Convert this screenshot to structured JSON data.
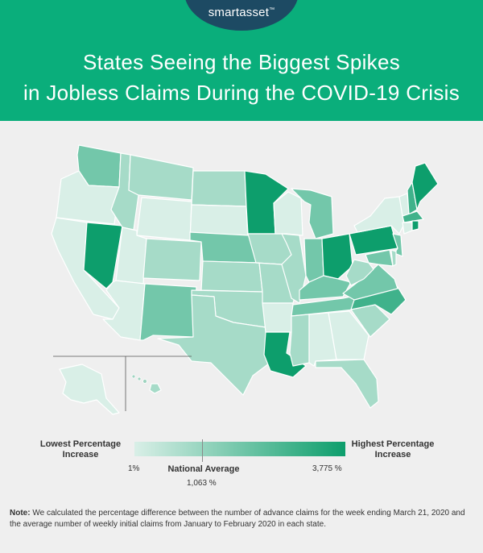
{
  "brand": {
    "logo_text": "smartasset",
    "trademark": "™"
  },
  "title": {
    "line1": "States Seeing the Biggest Spikes",
    "line2": "in Jobless Claims During the COVID-19 Crisis"
  },
  "colors": {
    "header_bg": "#0aae7b",
    "logo_badge": "#1d4a63",
    "lightest": "#d9efe7",
    "darkest": "#0d9e6c",
    "background": "#efefef"
  },
  "legend": {
    "low_label_line1": "Lowest Percentage",
    "low_label_line2": "Increase",
    "high_label_line1": "Highest Percentage",
    "high_label_line2": "Increase",
    "min_value": "1%",
    "max_value": "3,775 %",
    "national_average_label": "National Average",
    "national_average_value": "1,063 %"
  },
  "note": {
    "label": "Note:",
    "text": "We calculated the percentage difference between the number of advance claims for the week ending March 21, 2020 and the average number of weekly initial claims from January to February 2020 in each state."
  },
  "map_data": {
    "type": "choropleth",
    "region": "United States",
    "shading_scale": "light (lowest increase) to dark (highest increase)",
    "state_shading_level": {
      "WA": 3,
      "OR": 1,
      "CA": 1,
      "NV": 5,
      "ID": 2,
      "MT": 2,
      "WY": 1,
      "UT": 1,
      "AZ": 1,
      "CO": 2,
      "NM": 3,
      "ND": 2,
      "SD": 1,
      "NE": 3,
      "KS": 2,
      "OK": 2,
      "TX": 2,
      "MN": 5,
      "IA": 2,
      "MO": 2,
      "AR": 1,
      "LA": 5,
      "WI": 1,
      "IL": 2,
      "MI": 3,
      "IN": 3,
      "OH": 5,
      "KY": 3,
      "TN": 3,
      "MS": 2,
      "AL": 1,
      "GA": 1,
      "FL": 2,
      "SC": 2,
      "NC": 4,
      "VA": 3,
      "WV": 2,
      "PA": 5,
      "NY": 1,
      "ME": 5,
      "NH": 4,
      "VT": 1,
      "MA": 4,
      "RI": 5,
      "CT": 1,
      "NJ": 3,
      "DE": 2,
      "MD": 3,
      "AK": 1,
      "HI": 2
    }
  }
}
